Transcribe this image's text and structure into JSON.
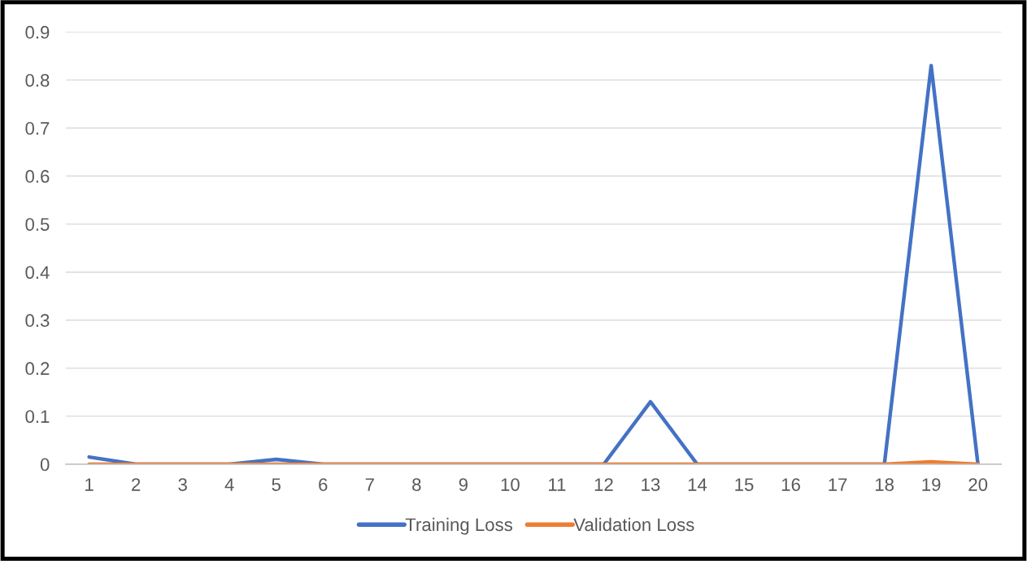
{
  "chart_data": {
    "type": "line",
    "categories": [
      "1",
      "2",
      "3",
      "4",
      "5",
      "6",
      "7",
      "8",
      "9",
      "10",
      "11",
      "12",
      "13",
      "14",
      "15",
      "16",
      "17",
      "18",
      "19",
      "20"
    ],
    "series": [
      {
        "name": "Training Loss",
        "color": "#4472c4",
        "values": [
          0.015,
          0,
          0,
          0,
          0.01,
          0,
          0,
          0,
          0,
          0,
          0,
          0,
          0.13,
          0,
          0,
          0,
          0,
          0,
          0.83,
          0
        ]
      },
      {
        "name": "Validation Loss",
        "color": "#ed7d31",
        "values": [
          0,
          0,
          0,
          0,
          0,
          0,
          0,
          0,
          0,
          0,
          0,
          0,
          0,
          0,
          0,
          0,
          0,
          0,
          0.005,
          0
        ]
      }
    ],
    "ylim": [
      0,
      0.9
    ],
    "yticks": [
      0,
      0.1,
      0.2,
      0.3,
      0.4,
      0.5,
      0.6,
      0.7,
      0.8,
      0.9
    ],
    "grid": "y",
    "legend": "bottom",
    "line_style": "solid"
  }
}
